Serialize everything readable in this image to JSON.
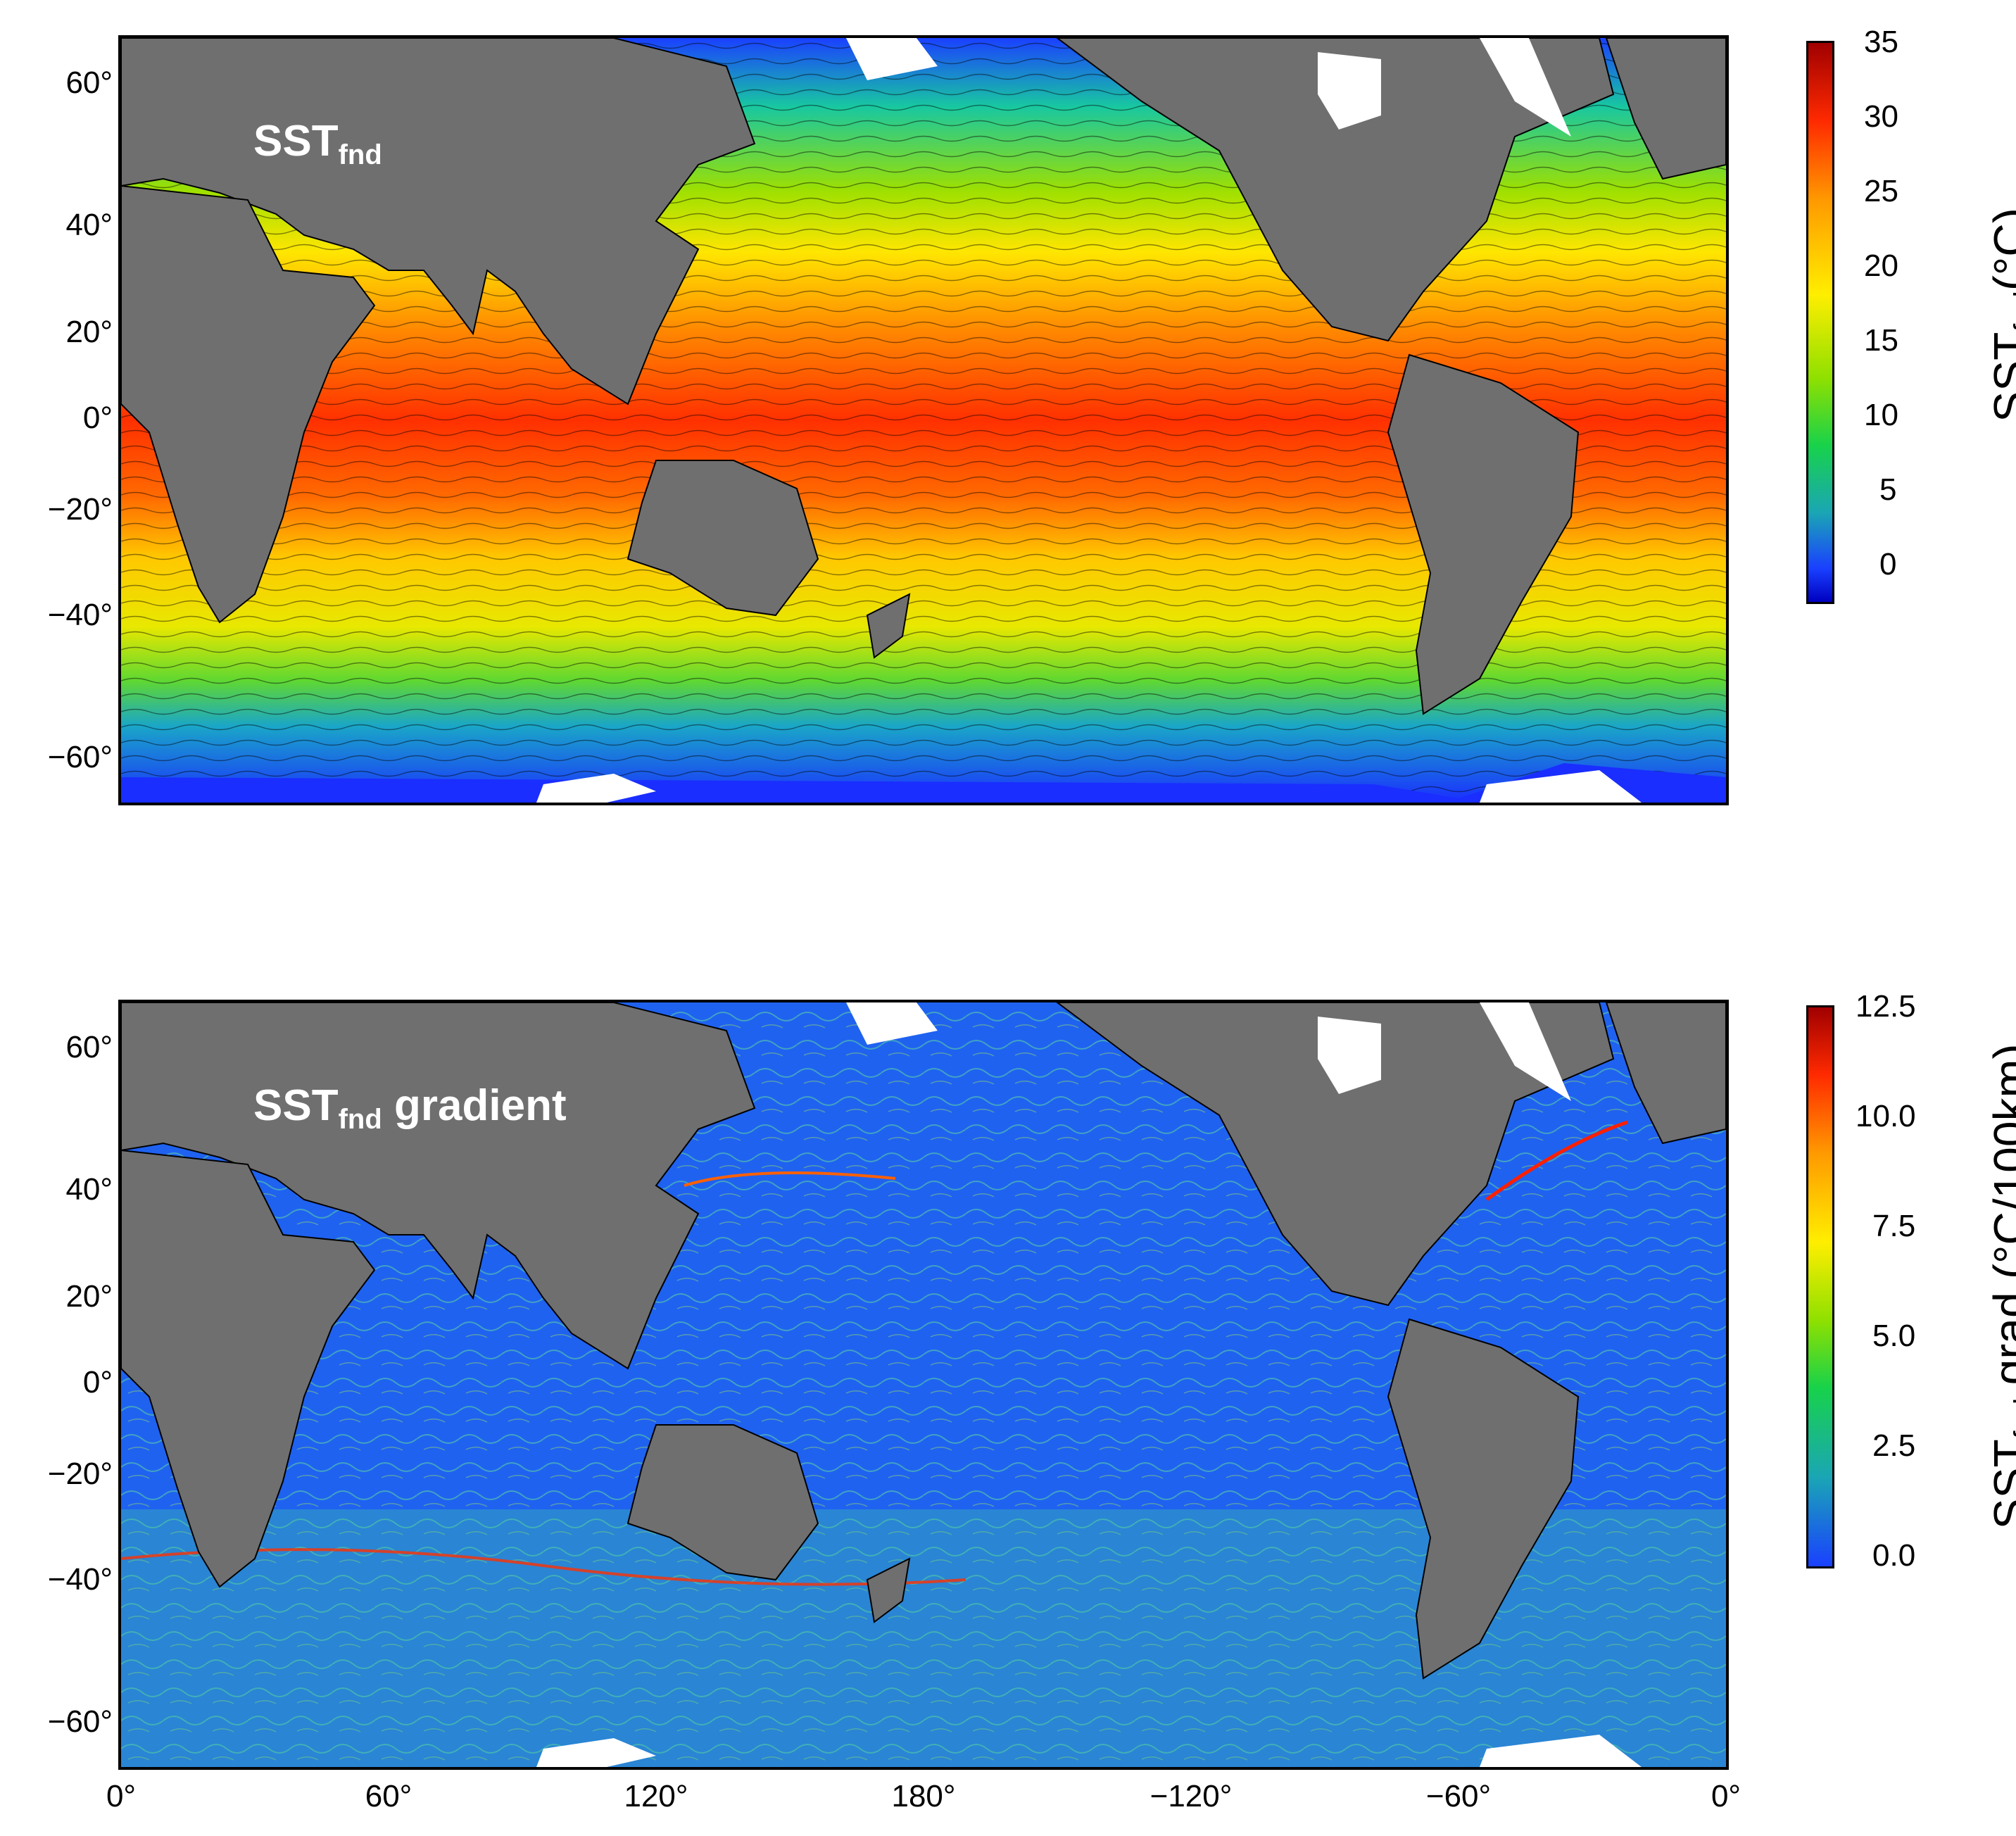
{
  "panels": [
    {
      "title_main": "SST",
      "title_sub": "fnd",
      "title_rest": "",
      "colorbar": {
        "title_main": "SST",
        "title_sub": "fnd",
        "title_rest": "(°C)",
        "ticks": [
          "35",
          "30",
          "25",
          "20",
          "15",
          "10",
          "5",
          "0"
        ],
        "colors": [
          "#a00000",
          "#ff2a00",
          "#ff9900",
          "#ffee00",
          "#8fe000",
          "#18d24a",
          "#1aa6b4",
          "#1a40ff",
          "#0000c0"
        ],
        "min": -3,
        "max": 35
      }
    },
    {
      "title_main": "SST",
      "title_sub": "fnd",
      "title_rest": " gradient",
      "colorbar": {
        "title_main": "SST",
        "title_sub": "fnd",
        "title_rest": " grad.(°C/100km)",
        "ticks": [
          "12.5",
          "10.0",
          "7.5",
          "5.0",
          "2.5",
          "0.0"
        ],
        "colors": [
          "#a00000",
          "#ff2a00",
          "#ff9900",
          "#ffee00",
          "#8fe000",
          "#18d24a",
          "#1aa6b4",
          "#1a40ff"
        ],
        "min": 0,
        "max": 12.5
      }
    }
  ],
  "axes": {
    "lat_ticks": [
      "60°",
      "40°",
      "20°",
      "0°",
      "−20°",
      "−40°",
      "−60°"
    ],
    "lon_ticks": [
      "0°",
      "60°",
      "120°",
      "180°",
      "−120°",
      "−60°",
      "0°"
    ]
  },
  "colors": {
    "land": "#6f6f6f",
    "ice": "#ffffff",
    "frame": "#000000"
  }
}
